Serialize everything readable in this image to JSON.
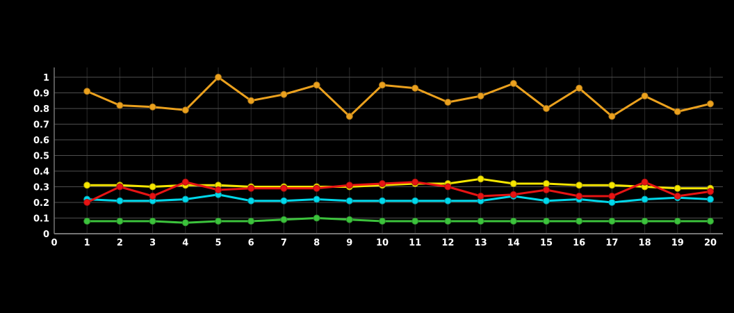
{
  "chart_data": {
    "type": "line",
    "title": "",
    "xlabel": "",
    "ylabel": "",
    "xlim": [
      0,
      20
    ],
    "ylim": [
      0,
      1
    ],
    "grid": true,
    "legend": false,
    "background_color": "#000000",
    "axis_color": "#757575",
    "h_gridline_color": "#4f4f4f",
    "v_gridline_color": "#2b2b2b",
    "tick_label_color": "#ffffff",
    "x_tick_labels": [
      "0",
      "1",
      "2",
      "3",
      "4",
      "5",
      "6",
      "7",
      "8",
      "9",
      "10",
      "11",
      "12",
      "13",
      "14",
      "15",
      "16",
      "17",
      "18",
      "19",
      "20"
    ],
    "y_tick_labels": [
      "0",
      "0.1",
      "0.2",
      "0.3",
      "0.4",
      "0.5",
      "0.6",
      "0.7",
      "0.8",
      "0.9",
      "1"
    ],
    "x": [
      1,
      2,
      3,
      4,
      5,
      6,
      7,
      8,
      9,
      10,
      11,
      12,
      13,
      14,
      15,
      16,
      17,
      18,
      19,
      20
    ],
    "series": [
      {
        "name": "green",
        "color": "#3cc23c",
        "values": [
          0.08,
          0.08,
          0.08,
          0.07,
          0.08,
          0.08,
          0.09,
          0.1,
          0.09,
          0.08,
          0.08,
          0.08,
          0.08,
          0.08,
          0.08,
          0.08,
          0.08,
          0.08,
          0.08,
          0.08
        ]
      },
      {
        "name": "cyan",
        "color": "#00d8eb",
        "values": [
          0.22,
          0.21,
          0.21,
          0.22,
          0.25,
          0.21,
          0.21,
          0.22,
          0.21,
          0.21,
          0.21,
          0.21,
          0.21,
          0.24,
          0.21,
          0.22,
          0.2,
          0.22,
          0.23,
          0.22
        ]
      },
      {
        "name": "yellow",
        "color": "#f5e600",
        "values": [
          0.31,
          0.31,
          0.3,
          0.31,
          0.31,
          0.3,
          0.3,
          0.3,
          0.3,
          0.31,
          0.32,
          0.32,
          0.35,
          0.32,
          0.32,
          0.31,
          0.31,
          0.3,
          0.29,
          0.29
        ]
      },
      {
        "name": "red",
        "color": "#e61414",
        "values": [
          0.2,
          0.3,
          0.24,
          0.33,
          0.28,
          0.29,
          0.29,
          0.29,
          0.31,
          0.32,
          0.33,
          0.3,
          0.24,
          0.25,
          0.28,
          0.24,
          0.24,
          0.33,
          0.24,
          0.27
        ]
      },
      {
        "name": "orange",
        "color": "#eba11e",
        "values": [
          0.91,
          0.82,
          0.81,
          0.79,
          1.0,
          0.85,
          0.89,
          0.95,
          0.75,
          0.95,
          0.93,
          0.84,
          0.88,
          0.96,
          0.8,
          0.93,
          0.75,
          0.88,
          0.78,
          0.83
        ]
      }
    ]
  }
}
